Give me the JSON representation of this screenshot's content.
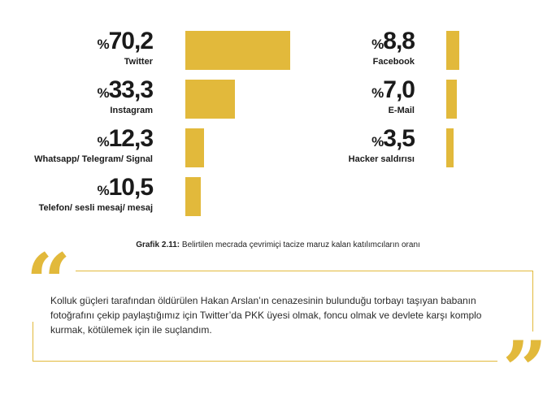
{
  "chart_data": {
    "type": "bar",
    "orientation": "horizontal",
    "percent_sign": "%",
    "xlim": [
      0,
      70.2
    ],
    "categories": [
      "Twitter",
      "Instagram",
      "Whatsapp/ Telegram/ Signal",
      "Telefon/ sesli mesaj/ mesaj",
      "Facebook",
      "E-Mail",
      "Hacker saldırısı"
    ],
    "values": [
      70.2,
      33.3,
      12.3,
      10.5,
      8.8,
      7.0,
      3.5
    ],
    "value_labels": [
      "70,2",
      "33,3",
      "12,3",
      "10,5",
      "8,8",
      "7,0",
      "3,5"
    ],
    "bar_color": "#e2b93b"
  },
  "caption": {
    "prefix": "Grafik 2.11:",
    "text": " Belirtilen mecrada çevrimiçi tacize maruz kalan katılımcıların oranı"
  },
  "quote": {
    "open_mark": "“",
    "close_mark": "”",
    "text": "Kolluk güçleri tarafından öldürülen Hakan Arslan’ın cenazesinin bulunduğu torbayı taşıyan babanın fotoğrafını çekip paylaştığımız için Twitter’da PKK üyesi olmak, foncu olmak ve devlete karşı komplo kurmak, kötülemek için ile suçlandım.",
    "accent_color": "#e2b93b"
  }
}
